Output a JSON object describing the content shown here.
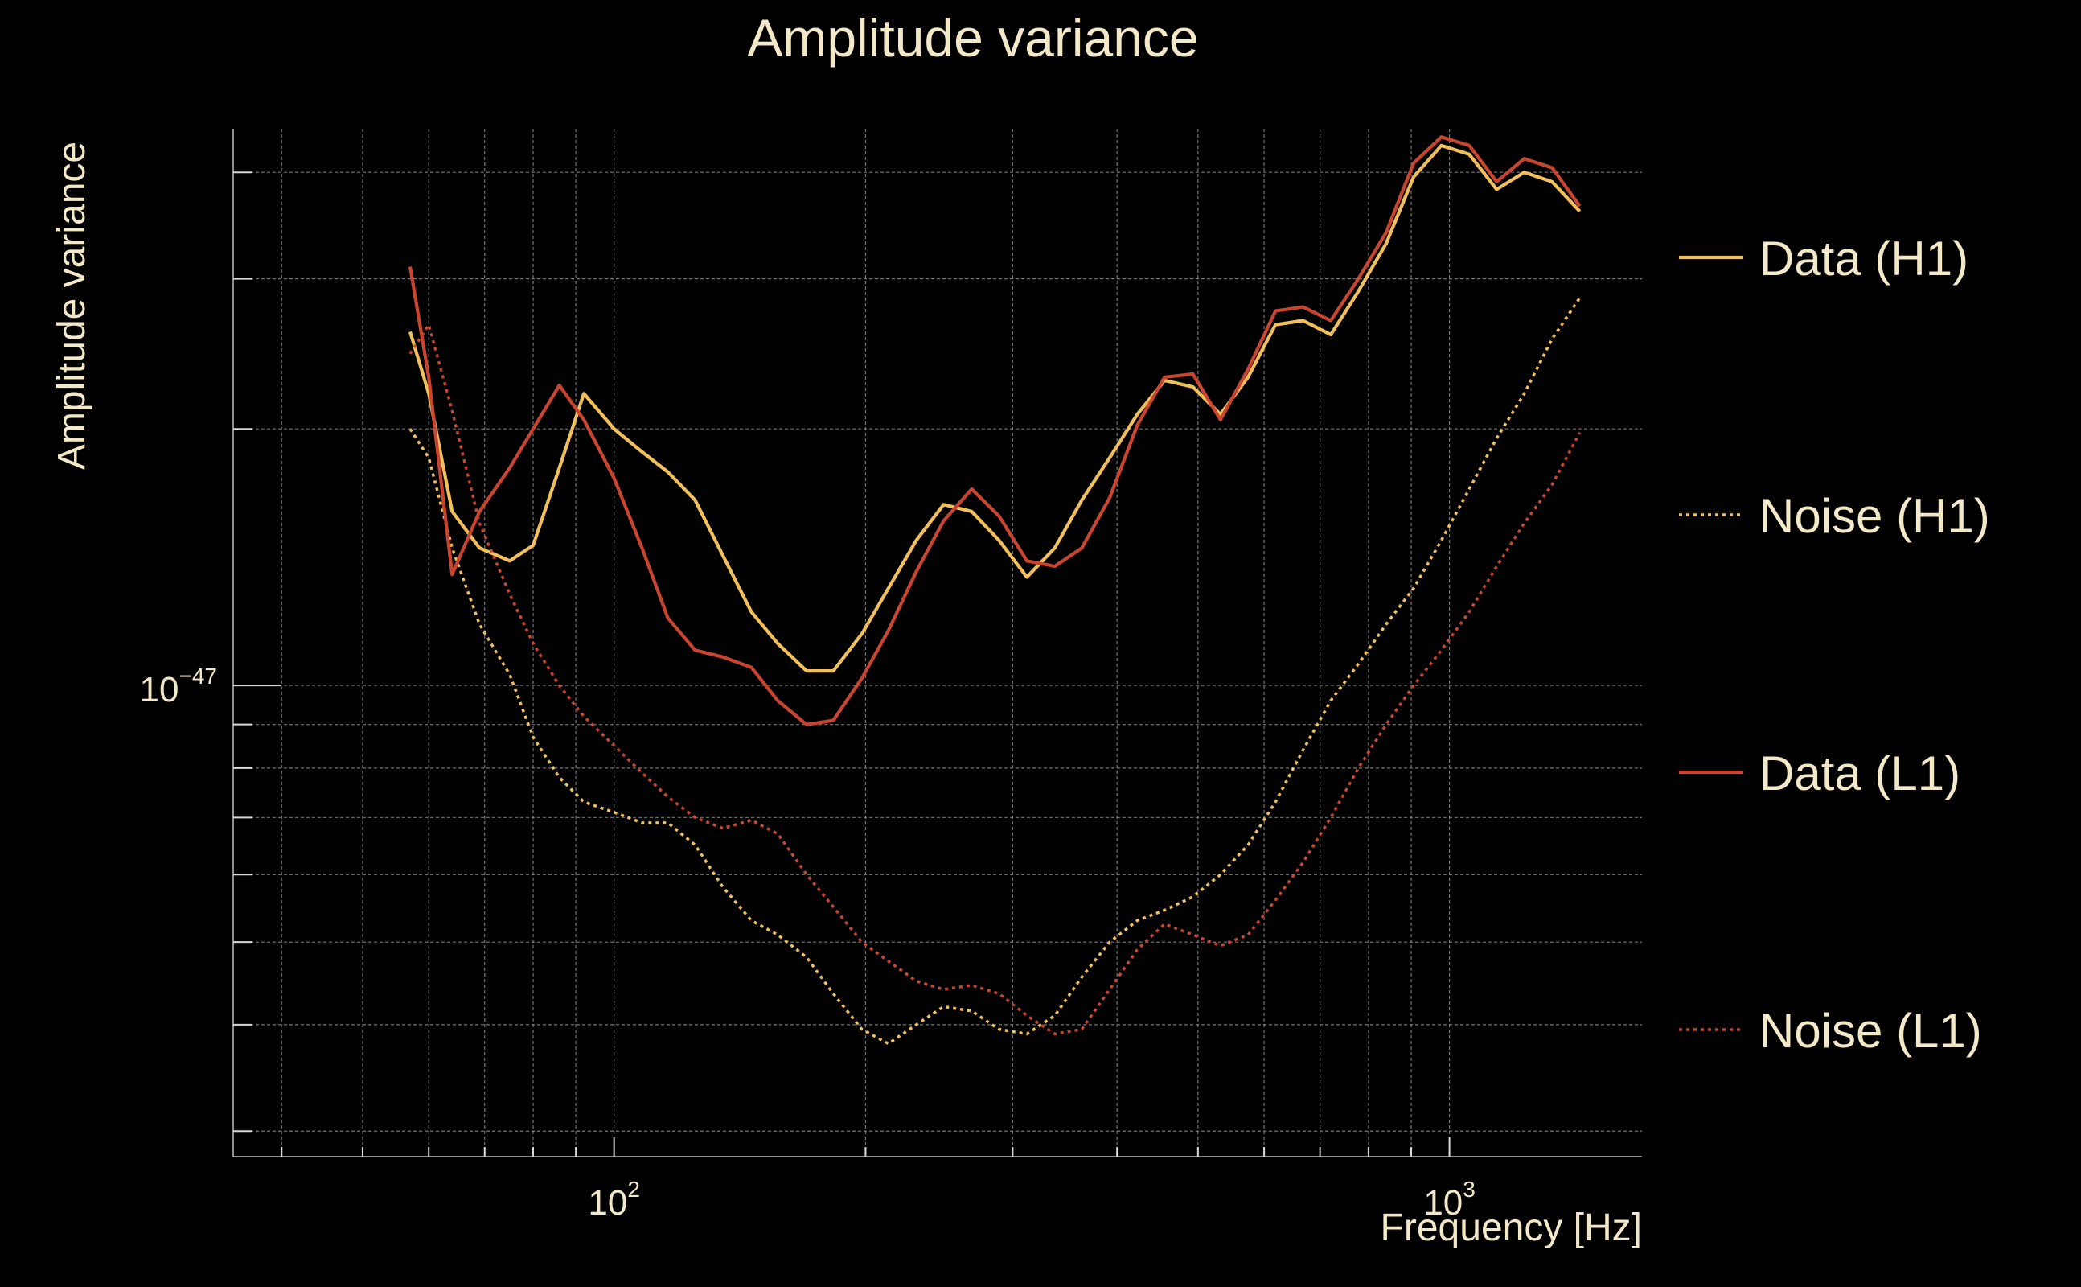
{
  "chart_data": {
    "type": "line",
    "title": "Amplitude variance",
    "xlabel": "Frequency [Hz]",
    "ylabel": "Amplitude variance",
    "xscale": "log",
    "yscale": "log",
    "xlim": [
      35,
      1700
    ],
    "ylim": [
      2.8e-48,
      4.5e-47
    ],
    "x_ticks": [
      {
        "base": "10",
        "exp": "2",
        "value": 100
      },
      {
        "base": "10",
        "exp": "3",
        "value": 1000
      }
    ],
    "y_ticks": [
      {
        "base": "10",
        "exp": "−47",
        "value": 1e-47
      }
    ],
    "grid": true,
    "legend_position": "right",
    "x": [
      57,
      60,
      64,
      69,
      75,
      80,
      86,
      92,
      100,
      108,
      116,
      125,
      135,
      146,
      157,
      170,
      183,
      198,
      213,
      230,
      248,
      268,
      289,
      312,
      337,
      363,
      392,
      423,
      456,
      493,
      532,
      574,
      619,
      668,
      721,
      778,
      840,
      906,
      978,
      1056,
      1139,
      1229,
      1327,
      1432
    ],
    "series": [
      {
        "name": "Data (H1)",
        "color": "#f2c05b",
        "style": "solid",
        "values": [
          2.6e-47,
          2.2e-47,
          1.6e-47,
          1.45e-47,
          1.4e-47,
          1.46e-47,
          1.8e-47,
          2.2e-47,
          2e-47,
          1.88e-47,
          1.78e-47,
          1.65e-47,
          1.42e-47,
          1.22e-47,
          1.12e-47,
          1.04e-47,
          1.04e-47,
          1.15e-47,
          1.3e-47,
          1.48e-47,
          1.63e-47,
          1.6e-47,
          1.48e-47,
          1.34e-47,
          1.45e-47,
          1.65e-47,
          1.85e-47,
          2.08e-47,
          2.28e-47,
          2.24e-47,
          2.08e-47,
          2.3e-47,
          2.65e-47,
          2.68e-47,
          2.58e-47,
          2.9e-47,
          3.3e-47,
          3.95e-47,
          4.3e-47,
          4.2e-47,
          3.82e-47,
          4e-47,
          3.9e-47,
          3.6e-47
        ]
      },
      {
        "name": "Noise (H1)",
        "color": "#f2c05b",
        "style": "dotted",
        "values": [
          2e-47,
          1.85e-47,
          1.45e-47,
          1.18e-47,
          1.03e-47,
          8.7e-48,
          7.8e-48,
          7.3e-48,
          7.1e-48,
          6.9e-48,
          6.9e-48,
          6.5e-48,
          5.8e-48,
          5.3e-48,
          5.1e-48,
          4.8e-48,
          4.35e-48,
          3.95e-48,
          3.8e-48,
          4e-48,
          4.2e-48,
          4.15e-48,
          3.95e-48,
          3.9e-48,
          4.1e-48,
          4.55e-48,
          5e-48,
          5.3e-48,
          5.45e-48,
          5.65e-48,
          6e-48,
          6.5e-48,
          7.3e-48,
          8.4e-48,
          9.6e-48,
          1.06e-47,
          1.18e-47,
          1.3e-47,
          1.48e-47,
          1.7e-47,
          1.95e-47,
          2.2e-47,
          2.55e-47,
          2.85e-47
        ]
      },
      {
        "name": "Data (L1)",
        "color": "#c9452f",
        "style": "solid",
        "values": [
          3.1e-47,
          2.3e-47,
          1.35e-47,
          1.6e-47,
          1.8e-47,
          2e-47,
          2.25e-47,
          2.05e-47,
          1.75e-47,
          1.45e-47,
          1.2e-47,
          1.1e-47,
          1.08e-47,
          1.05e-47,
          9.6e-48,
          9e-48,
          9.1e-48,
          1.02e-47,
          1.16e-47,
          1.36e-47,
          1.56e-47,
          1.7e-47,
          1.58e-47,
          1.4e-47,
          1.38e-47,
          1.45e-47,
          1.66e-47,
          2.02e-47,
          2.3e-47,
          2.32e-47,
          2.05e-47,
          2.35e-47,
          2.75e-47,
          2.78e-47,
          2.68e-47,
          3e-47,
          3.4e-47,
          4.1e-47,
          4.4e-47,
          4.3e-47,
          3.9e-47,
          4.15e-47,
          4.05e-47,
          3.65e-47
        ]
      },
      {
        "name": "Noise (L1)",
        "color": "#c9452f",
        "style": "dotted",
        "values": [
          2.45e-47,
          2.65e-47,
          2.1e-47,
          1.55e-47,
          1.28e-47,
          1.12e-47,
          1e-47,
          9.2e-48,
          8.5e-48,
          7.9e-48,
          7.4e-48,
          7e-48,
          6.8e-48,
          6.95e-48,
          6.7e-48,
          6e-48,
          5.5e-48,
          5e-48,
          4.75e-48,
          4.5e-48,
          4.4e-48,
          4.45e-48,
          4.35e-48,
          4.1e-48,
          3.9e-48,
          3.95e-48,
          4.4e-48,
          4.9e-48,
          5.25e-48,
          5.1e-48,
          4.95e-48,
          5.1e-48,
          5.6e-48,
          6.2e-48,
          7e-48,
          8e-48,
          9e-48,
          1e-47,
          1.1e-47,
          1.22e-47,
          1.38e-47,
          1.55e-47,
          1.72e-47,
          1.98e-47
        ]
      }
    ]
  }
}
